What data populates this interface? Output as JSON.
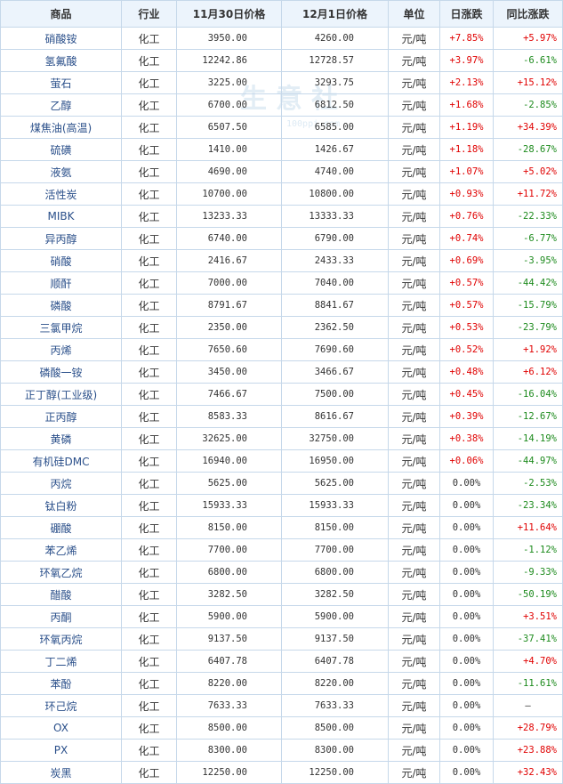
{
  "headers": [
    "商品",
    "行业",
    "11月30日价格",
    "12月1日价格",
    "单位",
    "日涨跌",
    "同比涨跌"
  ],
  "watermark": {
    "main": "生意社",
    "sub": "100ppi.com"
  },
  "rows": [
    {
      "name": "硝酸铵",
      "industry": "化工",
      "p1": "3950.00",
      "p2": "4260.00",
      "unit": "元/吨",
      "day": "+7.85%",
      "yoy": "+5.97%"
    },
    {
      "name": "氢氟酸",
      "industry": "化工",
      "p1": "12242.86",
      "p2": "12728.57",
      "unit": "元/吨",
      "day": "+3.97%",
      "yoy": "-6.61%"
    },
    {
      "name": "萤石",
      "industry": "化工",
      "p1": "3225.00",
      "p2": "3293.75",
      "unit": "元/吨",
      "day": "+2.13%",
      "yoy": "+15.12%"
    },
    {
      "name": "乙醇",
      "industry": "化工",
      "p1": "6700.00",
      "p2": "6812.50",
      "unit": "元/吨",
      "day": "+1.68%",
      "yoy": "-2.85%"
    },
    {
      "name": "煤焦油(高温)",
      "industry": "化工",
      "p1": "6507.50",
      "p2": "6585.00",
      "unit": "元/吨",
      "day": "+1.19%",
      "yoy": "+34.39%"
    },
    {
      "name": "硫磺",
      "industry": "化工",
      "p1": "1410.00",
      "p2": "1426.67",
      "unit": "元/吨",
      "day": "+1.18%",
      "yoy": "-28.67%"
    },
    {
      "name": "液氨",
      "industry": "化工",
      "p1": "4690.00",
      "p2": "4740.00",
      "unit": "元/吨",
      "day": "+1.07%",
      "yoy": "+5.02%"
    },
    {
      "name": "活性炭",
      "industry": "化工",
      "p1": "10700.00",
      "p2": "10800.00",
      "unit": "元/吨",
      "day": "+0.93%",
      "yoy": "+11.72%"
    },
    {
      "name": "MIBK",
      "industry": "化工",
      "p1": "13233.33",
      "p2": "13333.33",
      "unit": "元/吨",
      "day": "+0.76%",
      "yoy": "-22.33%"
    },
    {
      "name": "异丙醇",
      "industry": "化工",
      "p1": "6740.00",
      "p2": "6790.00",
      "unit": "元/吨",
      "day": "+0.74%",
      "yoy": "-6.77%"
    },
    {
      "name": "硝酸",
      "industry": "化工",
      "p1": "2416.67",
      "p2": "2433.33",
      "unit": "元/吨",
      "day": "+0.69%",
      "yoy": "-3.95%"
    },
    {
      "name": "顺酐",
      "industry": "化工",
      "p1": "7000.00",
      "p2": "7040.00",
      "unit": "元/吨",
      "day": "+0.57%",
      "yoy": "-44.42%"
    },
    {
      "name": "磷酸",
      "industry": "化工",
      "p1": "8791.67",
      "p2": "8841.67",
      "unit": "元/吨",
      "day": "+0.57%",
      "yoy": "-15.79%"
    },
    {
      "name": "三氯甲烷",
      "industry": "化工",
      "p1": "2350.00",
      "p2": "2362.50",
      "unit": "元/吨",
      "day": "+0.53%",
      "yoy": "-23.79%"
    },
    {
      "name": "丙烯",
      "industry": "化工",
      "p1": "7650.60",
      "p2": "7690.60",
      "unit": "元/吨",
      "day": "+0.52%",
      "yoy": "+1.92%"
    },
    {
      "name": "磷酸一铵",
      "industry": "化工",
      "p1": "3450.00",
      "p2": "3466.67",
      "unit": "元/吨",
      "day": "+0.48%",
      "yoy": "+6.12%"
    },
    {
      "name": "正丁醇(工业级)",
      "industry": "化工",
      "p1": "7466.67",
      "p2": "7500.00",
      "unit": "元/吨",
      "day": "+0.45%",
      "yoy": "-16.04%"
    },
    {
      "name": "正丙醇",
      "industry": "化工",
      "p1": "8583.33",
      "p2": "8616.67",
      "unit": "元/吨",
      "day": "+0.39%",
      "yoy": "-12.67%"
    },
    {
      "name": "黄磷",
      "industry": "化工",
      "p1": "32625.00",
      "p2": "32750.00",
      "unit": "元/吨",
      "day": "+0.38%",
      "yoy": "-14.19%"
    },
    {
      "name": "有机硅DMC",
      "industry": "化工",
      "p1": "16940.00",
      "p2": "16950.00",
      "unit": "元/吨",
      "day": "+0.06%",
      "yoy": "-44.97%"
    },
    {
      "name": "丙烷",
      "industry": "化工",
      "p1": "5625.00",
      "p2": "5625.00",
      "unit": "元/吨",
      "day": "0.00%",
      "yoy": "-2.53%"
    },
    {
      "name": "钛白粉",
      "industry": "化工",
      "p1": "15933.33",
      "p2": "15933.33",
      "unit": "元/吨",
      "day": "0.00%",
      "yoy": "-23.34%"
    },
    {
      "name": "硼酸",
      "industry": "化工",
      "p1": "8150.00",
      "p2": "8150.00",
      "unit": "元/吨",
      "day": "0.00%",
      "yoy": "+11.64%"
    },
    {
      "name": "苯乙烯",
      "industry": "化工",
      "p1": "7700.00",
      "p2": "7700.00",
      "unit": "元/吨",
      "day": "0.00%",
      "yoy": "-1.12%"
    },
    {
      "name": "环氧乙烷",
      "industry": "化工",
      "p1": "6800.00",
      "p2": "6800.00",
      "unit": "元/吨",
      "day": "0.00%",
      "yoy": "-9.33%"
    },
    {
      "name": "醋酸",
      "industry": "化工",
      "p1": "3282.50",
      "p2": "3282.50",
      "unit": "元/吨",
      "day": "0.00%",
      "yoy": "-50.19%"
    },
    {
      "name": "丙酮",
      "industry": "化工",
      "p1": "5900.00",
      "p2": "5900.00",
      "unit": "元/吨",
      "day": "0.00%",
      "yoy": "+3.51%"
    },
    {
      "name": "环氧丙烷",
      "industry": "化工",
      "p1": "9137.50",
      "p2": "9137.50",
      "unit": "元/吨",
      "day": "0.00%",
      "yoy": "-37.41%"
    },
    {
      "name": "丁二烯",
      "industry": "化工",
      "p1": "6407.78",
      "p2": "6407.78",
      "unit": "元/吨",
      "day": "0.00%",
      "yoy": "+4.70%"
    },
    {
      "name": "苯酚",
      "industry": "化工",
      "p1": "8220.00",
      "p2": "8220.00",
      "unit": "元/吨",
      "day": "0.00%",
      "yoy": "-11.61%"
    },
    {
      "name": "环己烷",
      "industry": "化工",
      "p1": "7633.33",
      "p2": "7633.33",
      "unit": "元/吨",
      "day": "0.00%",
      "yoy": "—"
    },
    {
      "name": "OX",
      "industry": "化工",
      "p1": "8500.00",
      "p2": "8500.00",
      "unit": "元/吨",
      "day": "0.00%",
      "yoy": "+28.79%"
    },
    {
      "name": "PX",
      "industry": "化工",
      "p1": "8300.00",
      "p2": "8300.00",
      "unit": "元/吨",
      "day": "0.00%",
      "yoy": "+23.88%"
    },
    {
      "name": "炭黑",
      "industry": "化工",
      "p1": "12250.00",
      "p2": "12250.00",
      "unit": "元/吨",
      "day": "0.00%",
      "yoy": "+32.43%"
    }
  ]
}
